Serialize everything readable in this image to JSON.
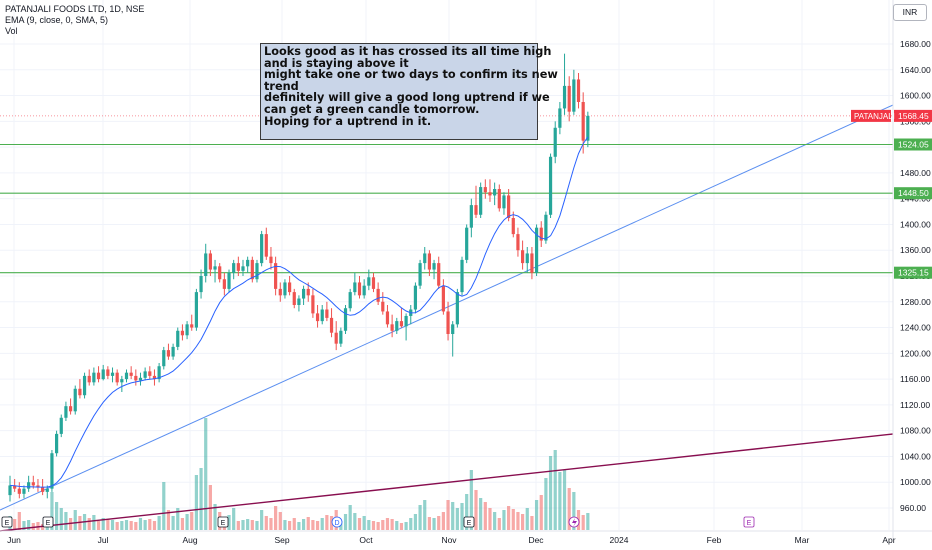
{
  "header": {
    "symbol_line": "PATANJALI FOODS LTD, 1D, NSE",
    "indicator_line": "EMA (9, close, 0, SMA, 5)",
    "volume_label": "Vol",
    "currency": "INR"
  },
  "annotation": {
    "lines": [
      "Looks good as it has crossed its all time high",
      "and is staying above it",
      "might take one or two days to confirm its new",
      "trend",
      "definitely will give a good long uptrend if  we",
      "can get a green candle tomorrow.",
      "Hoping for a uptrend in it."
    ]
  },
  "colors": {
    "up": "#26a69a",
    "down": "#ef5350",
    "ema": "#2962ff",
    "trendline": "#5b8ff0",
    "volume_trend": "#880e4f",
    "horizontal": "#4caf50",
    "current_price": "#f23645"
  },
  "chart_data": {
    "type": "candlestick",
    "title": "PATANJALI FOODS LTD, 1D, NSE",
    "y_axis": {
      "range": [
        930,
        1700
      ],
      "ticks": [
        960,
        1000,
        1040,
        1080,
        1120,
        1160,
        1200,
        1240,
        1280,
        1320,
        1360,
        1400,
        1440,
        1480,
        1520,
        1560,
        1600,
        1640,
        1680
      ]
    },
    "x_axis": {
      "labels": [
        "Jun",
        "Jul",
        "Aug",
        "Sep",
        "Oct",
        "Nov",
        "Dec",
        "2024",
        "Feb",
        "Mar",
        "Apr"
      ]
    },
    "horizontal_levels": [
      {
        "value": 1524.05,
        "label": "1524.05"
      },
      {
        "value": 1448.5,
        "label": "1448.50"
      },
      {
        "value": 1325.15,
        "label": "1325.15"
      }
    ],
    "current_price": {
      "value": 1568.45,
      "label": "1568.45",
      "tag": "PATANJALI"
    },
    "series": [
      {
        "name": "PATANJALI FOODS LTD",
        "candles": [
          [
            980,
            1010,
            970,
            995
          ],
          [
            995,
            1005,
            985,
            990
          ],
          [
            990,
            1000,
            975,
            982
          ],
          [
            982,
            995,
            975,
            990
          ],
          [
            990,
            1010,
            985,
            1000
          ],
          [
            1000,
            1010,
            990,
            995
          ],
          [
            995,
            1005,
            985,
            992
          ],
          [
            992,
            1005,
            980,
            985
          ],
          [
            985,
            995,
            975,
            990
          ],
          [
            990,
            1050,
            985,
            1045
          ],
          [
            1045,
            1080,
            1040,
            1075
          ],
          [
            1075,
            1105,
            1070,
            1100
          ],
          [
            1100,
            1125,
            1095,
            1118
          ],
          [
            1118,
            1130,
            1105,
            1110
          ],
          [
            1110,
            1150,
            1105,
            1145
          ],
          [
            1145,
            1160,
            1130,
            1135
          ],
          [
            1135,
            1170,
            1130,
            1165
          ],
          [
            1165,
            1175,
            1150,
            1155
          ],
          [
            1155,
            1178,
            1150,
            1170
          ],
          [
            1170,
            1180,
            1155,
            1160
          ],
          [
            1160,
            1182,
            1158,
            1175
          ],
          [
            1175,
            1180,
            1160,
            1165
          ],
          [
            1165,
            1178,
            1155,
            1170
          ],
          [
            1170,
            1175,
            1150,
            1155
          ],
          [
            1155,
            1165,
            1140,
            1160
          ],
          [
            1160,
            1175,
            1155,
            1170
          ],
          [
            1170,
            1180,
            1160,
            1165
          ],
          [
            1165,
            1175,
            1150,
            1158
          ],
          [
            1158,
            1170,
            1150,
            1162
          ],
          [
            1162,
            1178,
            1158,
            1172
          ],
          [
            1172,
            1180,
            1160,
            1165
          ],
          [
            1165,
            1175,
            1150,
            1160
          ],
          [
            1160,
            1185,
            1155,
            1180
          ],
          [
            1180,
            1210,
            1175,
            1205
          ],
          [
            1205,
            1215,
            1190,
            1195
          ],
          [
            1195,
            1215,
            1190,
            1210
          ],
          [
            1210,
            1240,
            1205,
            1235
          ],
          [
            1235,
            1245,
            1220,
            1228
          ],
          [
            1228,
            1250,
            1222,
            1245
          ],
          [
            1245,
            1260,
            1235,
            1240
          ],
          [
            1240,
            1300,
            1235,
            1295
          ],
          [
            1295,
            1330,
            1285,
            1320
          ],
          [
            1320,
            1370,
            1310,
            1355
          ],
          [
            1355,
            1360,
            1320,
            1330
          ],
          [
            1330,
            1345,
            1310,
            1335
          ],
          [
            1335,
            1340,
            1310,
            1315
          ],
          [
            1315,
            1325,
            1290,
            1300
          ],
          [
            1300,
            1330,
            1295,
            1325
          ],
          [
            1325,
            1345,
            1315,
            1340
          ],
          [
            1340,
            1350,
            1320,
            1328
          ],
          [
            1328,
            1345,
            1320,
            1335
          ],
          [
            1335,
            1350,
            1325,
            1345
          ],
          [
            1345,
            1350,
            1310,
            1315
          ],
          [
            1315,
            1345,
            1310,
            1340
          ],
          [
            1340,
            1390,
            1335,
            1385
          ],
          [
            1385,
            1395,
            1345,
            1350
          ],
          [
            1350,
            1365,
            1330,
            1340
          ],
          [
            1340,
            1350,
            1290,
            1300
          ],
          [
            1300,
            1310,
            1280,
            1290
          ],
          [
            1290,
            1315,
            1285,
            1310
          ],
          [
            1310,
            1320,
            1290,
            1295
          ],
          [
            1295,
            1300,
            1270,
            1275
          ],
          [
            1275,
            1290,
            1265,
            1285
          ],
          [
            1285,
            1305,
            1275,
            1300
          ],
          [
            1300,
            1310,
            1280,
            1290
          ],
          [
            1290,
            1300,
            1255,
            1262
          ],
          [
            1262,
            1275,
            1240,
            1250
          ],
          [
            1250,
            1275,
            1245,
            1268
          ],
          [
            1268,
            1280,
            1250,
            1255
          ],
          [
            1255,
            1270,
            1225,
            1232
          ],
          [
            1232,
            1250,
            1205,
            1215
          ],
          [
            1215,
            1240,
            1210,
            1235
          ],
          [
            1235,
            1275,
            1230,
            1270
          ],
          [
            1270,
            1300,
            1265,
            1295
          ],
          [
            1295,
            1325,
            1290,
            1310
          ],
          [
            1310,
            1320,
            1285,
            1290
          ],
          [
            1290,
            1315,
            1285,
            1305
          ],
          [
            1305,
            1330,
            1298,
            1318
          ],
          [
            1318,
            1325,
            1295,
            1300
          ],
          [
            1300,
            1310,
            1275,
            1280
          ],
          [
            1280,
            1295,
            1260,
            1265
          ],
          [
            1265,
            1275,
            1240,
            1245
          ],
          [
            1245,
            1260,
            1225,
            1235
          ],
          [
            1235,
            1255,
            1230,
            1250
          ],
          [
            1250,
            1270,
            1240,
            1242
          ],
          [
            1242,
            1262,
            1220,
            1258
          ],
          [
            1258,
            1275,
            1245,
            1268
          ],
          [
            1268,
            1310,
            1262,
            1305
          ],
          [
            1305,
            1345,
            1300,
            1340
          ],
          [
            1340,
            1365,
            1330,
            1355
          ],
          [
            1355,
            1360,
            1320,
            1330
          ],
          [
            1330,
            1345,
            1315,
            1340
          ],
          [
            1340,
            1350,
            1300,
            1305
          ],
          [
            1305,
            1315,
            1260,
            1265
          ],
          [
            1265,
            1280,
            1220,
            1230
          ],
          [
            1230,
            1250,
            1195,
            1245
          ],
          [
            1245,
            1300,
            1240,
            1295
          ],
          [
            1295,
            1350,
            1290,
            1345
          ],
          [
            1345,
            1400,
            1340,
            1395
          ],
          [
            1395,
            1440,
            1380,
            1430
          ],
          [
            1430,
            1460,
            1410,
            1415
          ],
          [
            1415,
            1465,
            1410,
            1458
          ],
          [
            1458,
            1470,
            1440,
            1450
          ],
          [
            1450,
            1470,
            1435,
            1445
          ],
          [
            1445,
            1465,
            1430,
            1455
          ],
          [
            1455,
            1462,
            1420,
            1425
          ],
          [
            1425,
            1450,
            1415,
            1445
          ],
          [
            1445,
            1455,
            1405,
            1410
          ],
          [
            1410,
            1420,
            1380,
            1385
          ],
          [
            1385,
            1395,
            1350,
            1360
          ],
          [
            1360,
            1375,
            1330,
            1340
          ],
          [
            1340,
            1365,
            1325,
            1355
          ],
          [
            1355,
            1365,
            1315,
            1325
          ],
          [
            1325,
            1400,
            1320,
            1395
          ],
          [
            1395,
            1405,
            1365,
            1375
          ],
          [
            1375,
            1420,
            1370,
            1415
          ],
          [
            1415,
            1510,
            1410,
            1505
          ],
          [
            1505,
            1560,
            1495,
            1550
          ],
          [
            1550,
            1590,
            1540,
            1580
          ],
          [
            1580,
            1665,
            1570,
            1615
          ],
          [
            1615,
            1630,
            1560,
            1575
          ],
          [
            1575,
            1640,
            1570,
            1625
          ],
          [
            1625,
            1635,
            1580,
            1590
          ],
          [
            1590,
            1605,
            1510,
            1530
          ],
          [
            1530,
            1575,
            1520,
            1568.45
          ]
        ],
        "volumes": [
          14,
          11,
          18,
          9,
          10,
          7,
          8,
          6,
          9,
          38,
          28,
          22,
          18,
          12,
          20,
          14,
          16,
          12,
          15,
          9,
          12,
          11,
          10,
          8,
          9,
          10,
          9,
          8,
          12,
          10,
          11,
          9,
          14,
          48,
          20,
          14,
          22,
          12,
          16,
          18,
          55,
          62,
          112,
          45,
          26,
          18,
          12,
          15,
          22,
          9,
          10,
          11,
          10,
          9,
          20,
          14,
          12,
          24,
          18,
          10,
          9,
          12,
          8,
          11,
          13,
          10,
          9,
          12,
          15,
          14,
          20,
          9,
          16,
          25,
          17,
          12,
          14,
          10,
          9,
          8,
          10,
          12,
          11,
          9,
          7,
          8,
          12,
          16,
          25,
          30,
          13,
          12,
          14,
          18,
          30,
          28,
          22,
          27,
          36,
          60,
          40,
          32,
          28,
          22,
          18,
          12,
          20,
          24,
          21,
          18,
          16,
          22,
          14,
          30,
          35,
          52,
          74,
          80,
          58,
          60,
          42,
          38,
          20,
          15,
          17
        ]
      },
      {
        "name": "EMA (9, close, 0, SMA, 5)"
      }
    ]
  }
}
